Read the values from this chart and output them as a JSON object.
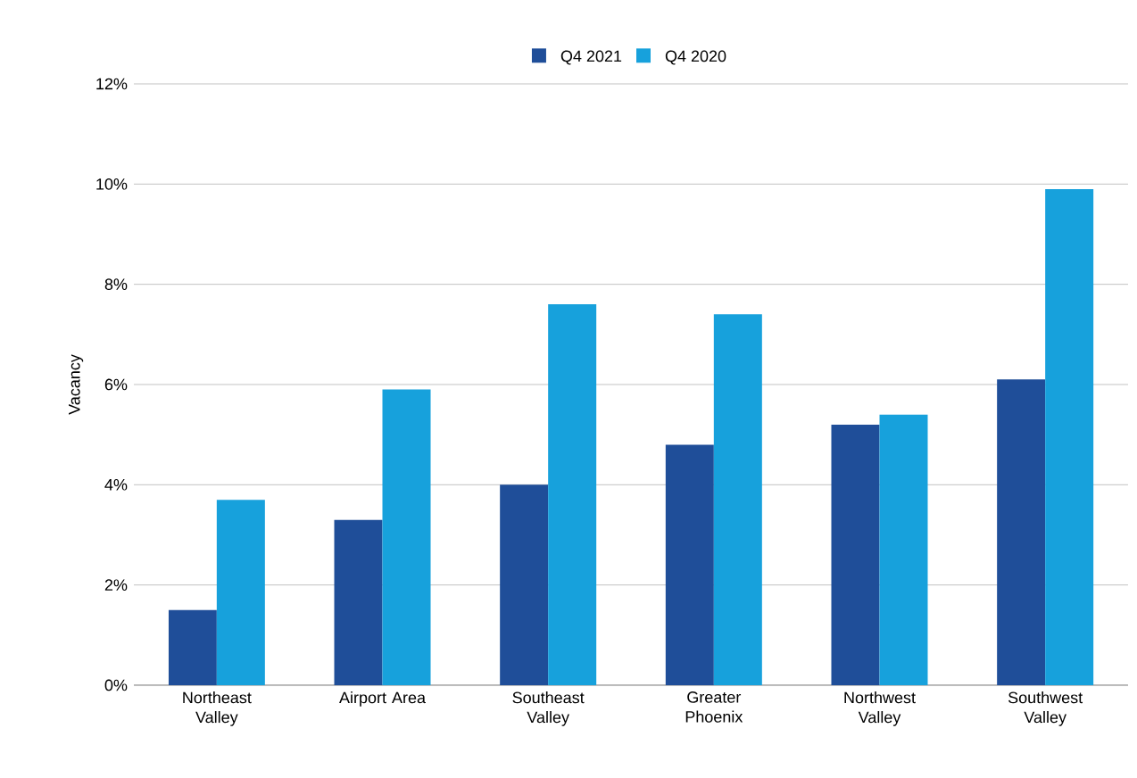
{
  "chart_data": {
    "type": "bar",
    "ylabel": "Vacancy",
    "categories": [
      "Northeast Valley",
      "Airport Area",
      "Southeast Valley",
      "Greater Phoenix",
      "Northwest Valley",
      "Southwest Valley"
    ],
    "series": [
      {
        "name": "Q4 2021",
        "color": "#1f4e99",
        "values": [
          1.5,
          3.3,
          4.0,
          4.8,
          5.2,
          6.1
        ]
      },
      {
        "name": "Q4 2020",
        "color": "#17a1dc",
        "values": [
          3.7,
          5.9,
          7.6,
          7.4,
          5.4,
          9.9
        ]
      }
    ],
    "ylim": [
      0,
      12
    ],
    "yticks": [
      {
        "value": 0,
        "label": "0%"
      },
      {
        "value": 2,
        "label": "2%"
      },
      {
        "value": 4,
        "label": "4%"
      },
      {
        "value": 6,
        "label": "6%"
      },
      {
        "value": 8,
        "label": "8%"
      },
      {
        "value": 10,
        "label": "10%"
      },
      {
        "value": 12,
        "label": "12%"
      }
    ],
    "grid": "y",
    "legend": "top"
  }
}
